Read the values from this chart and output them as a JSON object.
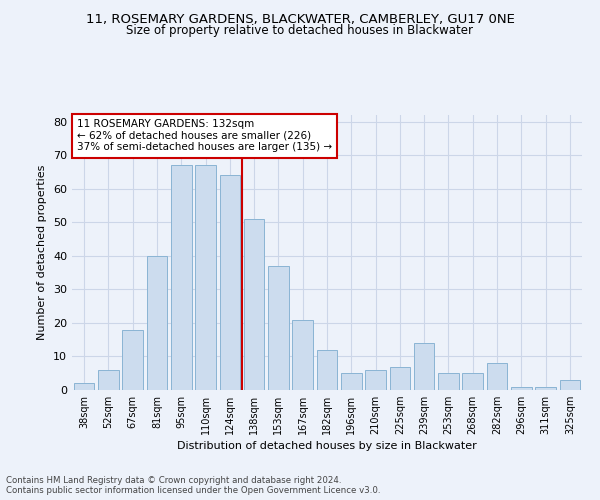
{
  "title1": "11, ROSEMARY GARDENS, BLACKWATER, CAMBERLEY, GU17 0NE",
  "title2": "Size of property relative to detached houses in Blackwater",
  "xlabel": "Distribution of detached houses by size in Blackwater",
  "ylabel": "Number of detached properties",
  "categories": [
    "38sqm",
    "52sqm",
    "67sqm",
    "81sqm",
    "95sqm",
    "110sqm",
    "124sqm",
    "138sqm",
    "153sqm",
    "167sqm",
    "182sqm",
    "196sqm",
    "210sqm",
    "225sqm",
    "239sqm",
    "253sqm",
    "268sqm",
    "282sqm",
    "296sqm",
    "311sqm",
    "325sqm"
  ],
  "values": [
    2,
    6,
    18,
    40,
    67,
    67,
    64,
    51,
    37,
    21,
    12,
    5,
    6,
    7,
    14,
    5,
    5,
    8,
    1,
    1,
    3
  ],
  "bar_color": "#ccdcee",
  "bar_edge_color": "#8ab4d4",
  "grid_color": "#ccd6e8",
  "property_line_x": 6.5,
  "annotation_text": "11 ROSEMARY GARDENS: 132sqm\n← 62% of detached houses are smaller (226)\n37% of semi-detached houses are larger (135) →",
  "annotation_box_color": "#ffffff",
  "annotation_box_edge_color": "#cc0000",
  "property_line_color": "#cc0000",
  "ylim": [
    0,
    82
  ],
  "yticks": [
    0,
    10,
    20,
    30,
    40,
    50,
    60,
    70,
    80
  ],
  "footnote": "Contains HM Land Registry data © Crown copyright and database right 2024.\nContains public sector information licensed under the Open Government Licence v3.0.",
  "background_color": "#edf2fa"
}
